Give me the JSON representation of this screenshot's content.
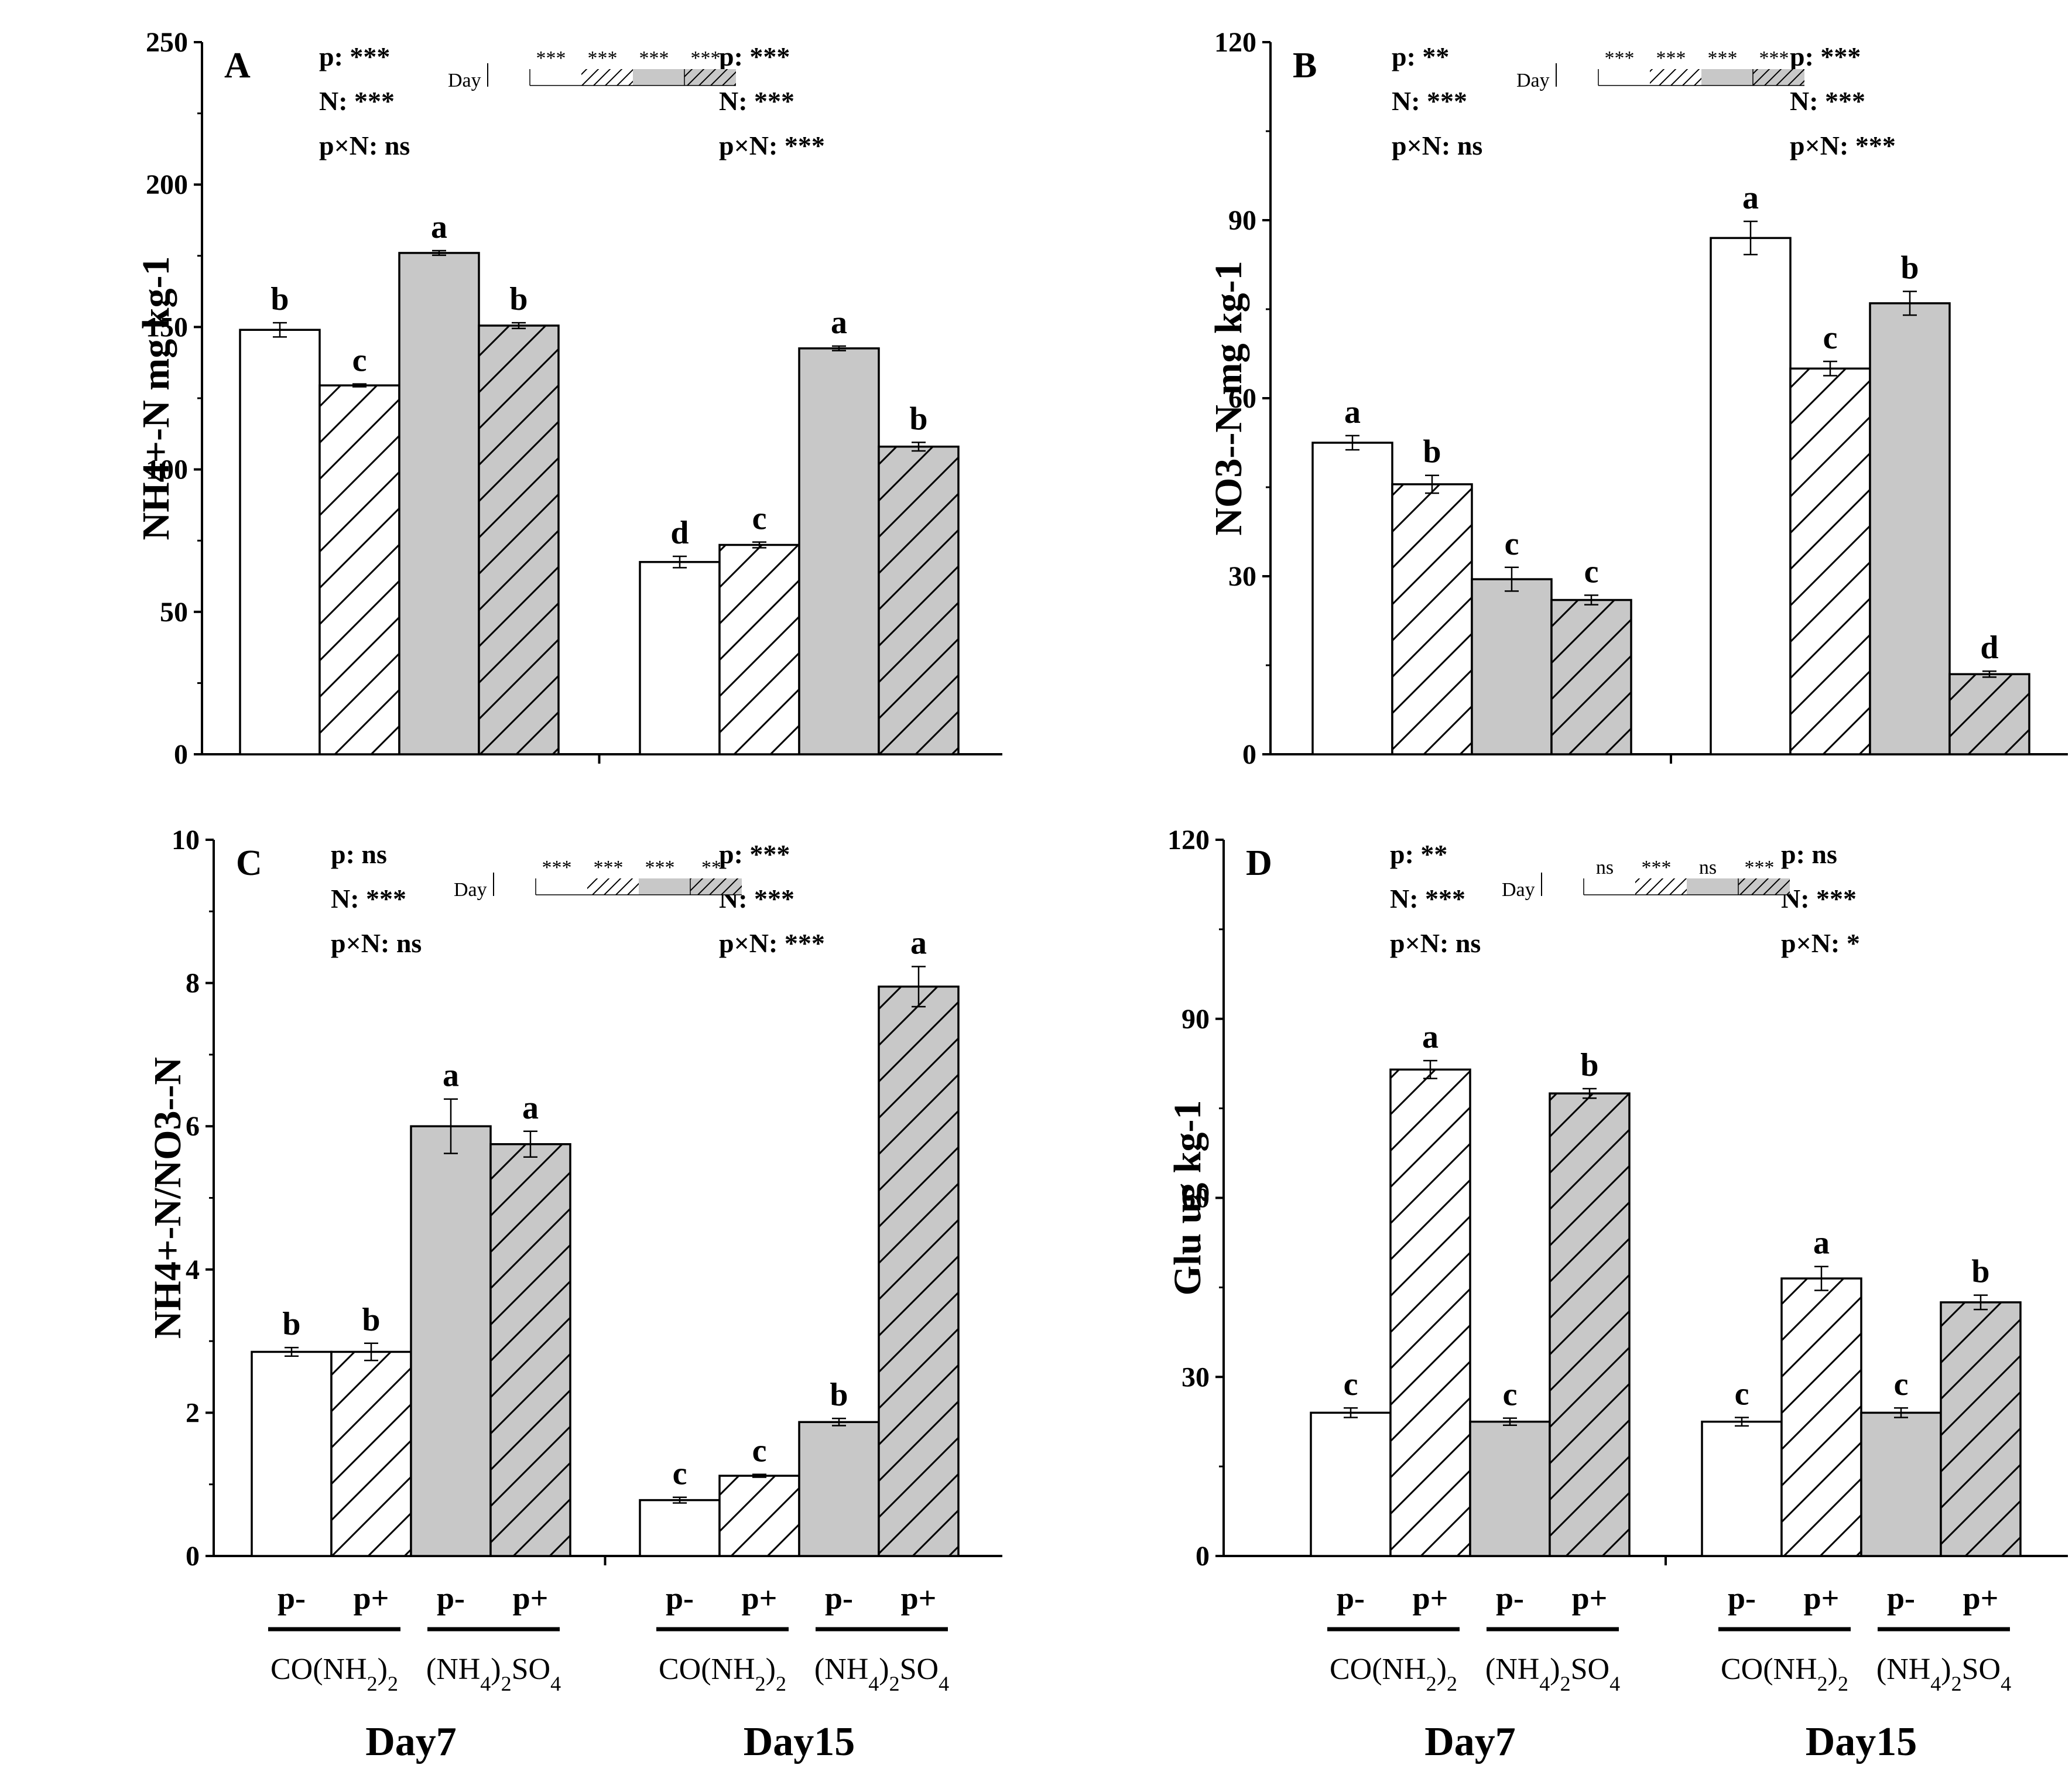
{
  "figure": {
    "day_labels": [
      "Day7",
      "Day15"
    ],
    "treatment_labels": [
      "p-",
      "p+"
    ],
    "fertilizer_labels": [
      "CO(NH2)2",
      "(NH4)2SO4"
    ],
    "legend_day_label": "Day"
  },
  "chart_data": [
    {
      "panel": "A",
      "type": "bar",
      "ylabel": "NH4+-N mg kg-1",
      "ylim": [
        0,
        250
      ],
      "yticks": [
        0,
        50,
        100,
        150,
        200,
        250
      ],
      "categories": [
        "CO(NH2)2 p-",
        "CO(NH2)2 p+",
        "(NH4)2SO4 p-",
        "(NH4)2SO4 p+"
      ],
      "groups": [
        {
          "day": "Day7",
          "values": [
            149,
            129.5,
            176,
            150.5
          ],
          "errors": [
            2.5,
            0.5,
            0.8,
            1.0
          ],
          "letters": [
            "b",
            "c",
            "a",
            "b"
          ],
          "stats": {
            "p": "p: ***",
            "N": "N: ***",
            "pxN": "p×N: ns"
          }
        },
        {
          "day": "Day15",
          "values": [
            67.5,
            73.5,
            142.5,
            108
          ],
          "errors": [
            2.0,
            1.0,
            0.8,
            1.5
          ],
          "letters": [
            "d",
            "c",
            "a",
            "b"
          ],
          "stats": {
            "p": "p: ***",
            "N": "N: ***",
            "pxN": "p×N: ***"
          }
        }
      ],
      "legend_stats": [
        "***",
        "***",
        "***",
        "***"
      ]
    },
    {
      "panel": "B",
      "type": "bar",
      "ylabel": "NO3--N mg kg-1",
      "ylim": [
        0,
        120
      ],
      "yticks": [
        0,
        30,
        60,
        90,
        120
      ],
      "categories": [
        "CO(NH2)2 p-",
        "CO(NH2)2 p+",
        "(NH4)2SO4 p-",
        "(NH4)2SO4 p+"
      ],
      "groups": [
        {
          "day": "Day7",
          "values": [
            52.5,
            45.5,
            29.5,
            26
          ],
          "errors": [
            1.2,
            1.5,
            2.0,
            0.8
          ],
          "letters": [
            "a",
            "b",
            "c",
            "c"
          ],
          "stats": {
            "p": "p: **",
            "N": "N: ***",
            "pxN": "p×N: ns"
          }
        },
        {
          "day": "Day15",
          "values": [
            87,
            65,
            76,
            13.5
          ],
          "errors": [
            2.8,
            1.2,
            2.0,
            0.5
          ],
          "letters": [
            "a",
            "c",
            "b",
            "d"
          ],
          "stats": {
            "p": "p: ***",
            "N": "N: ***",
            "pxN": "p×N: ***"
          }
        }
      ],
      "legend_stats": [
        "***",
        "***",
        "***",
        "***"
      ]
    },
    {
      "panel": "C",
      "type": "bar",
      "ylabel": "NH4+-N/NO3--N",
      "ylim": [
        0,
        10
      ],
      "yticks": [
        0,
        2,
        4,
        6,
        8,
        10
      ],
      "categories": [
        "CO(NH2)2 p-",
        "CO(NH2)2 p+",
        "(NH4)2SO4 p-",
        "(NH4)2SO4 p+"
      ],
      "groups": [
        {
          "day": "Day7",
          "values": [
            2.85,
            2.85,
            6.0,
            5.75
          ],
          "errors": [
            0.06,
            0.12,
            0.38,
            0.18
          ],
          "letters": [
            "b",
            "b",
            "a",
            "a"
          ],
          "stats": {
            "p": "p: ns",
            "N": "N: ***",
            "pxN": "p×N: ns"
          }
        },
        {
          "day": "Day15",
          "values": [
            0.78,
            1.12,
            1.87,
            7.95
          ],
          "errors": [
            0.04,
            0.02,
            0.05,
            0.28
          ],
          "letters": [
            "c",
            "c",
            "b",
            "a"
          ],
          "stats": {
            "p": "p: ***",
            "N": "N: ***",
            "pxN": "p×N: ***"
          }
        }
      ],
      "legend_stats": [
        "***",
        "***",
        "***",
        "**"
      ]
    },
    {
      "panel": "D",
      "type": "bar",
      "ylabel": "Glu ug kg-1",
      "ylim": [
        0,
        120
      ],
      "yticks": [
        0,
        30,
        60,
        90,
        120
      ],
      "categories": [
        "CO(NH2)2 p-",
        "CO(NH2)2 p+",
        "(NH4)2SO4 p-",
        "(NH4)2SO4 p+"
      ],
      "groups": [
        {
          "day": "Day7",
          "values": [
            24,
            81.5,
            22.5,
            77.5
          ],
          "errors": [
            0.8,
            1.5,
            0.6,
            0.8
          ],
          "letters": [
            "c",
            "a",
            "c",
            "b"
          ],
          "stats": {
            "p": "p: **",
            "N": "N: ***",
            "pxN": "p×N: ns"
          }
        },
        {
          "day": "Day15",
          "values": [
            22.5,
            46.5,
            24,
            42.5
          ],
          "errors": [
            0.7,
            2.0,
            0.8,
            1.2
          ],
          "letters": [
            "c",
            "a",
            "c",
            "b"
          ],
          "stats": {
            "p": "p: ns",
            "N": "N: ***",
            "pxN": "p×N: *"
          }
        }
      ],
      "legend_stats": [
        "ns",
        "***",
        "ns",
        "***"
      ]
    }
  ]
}
